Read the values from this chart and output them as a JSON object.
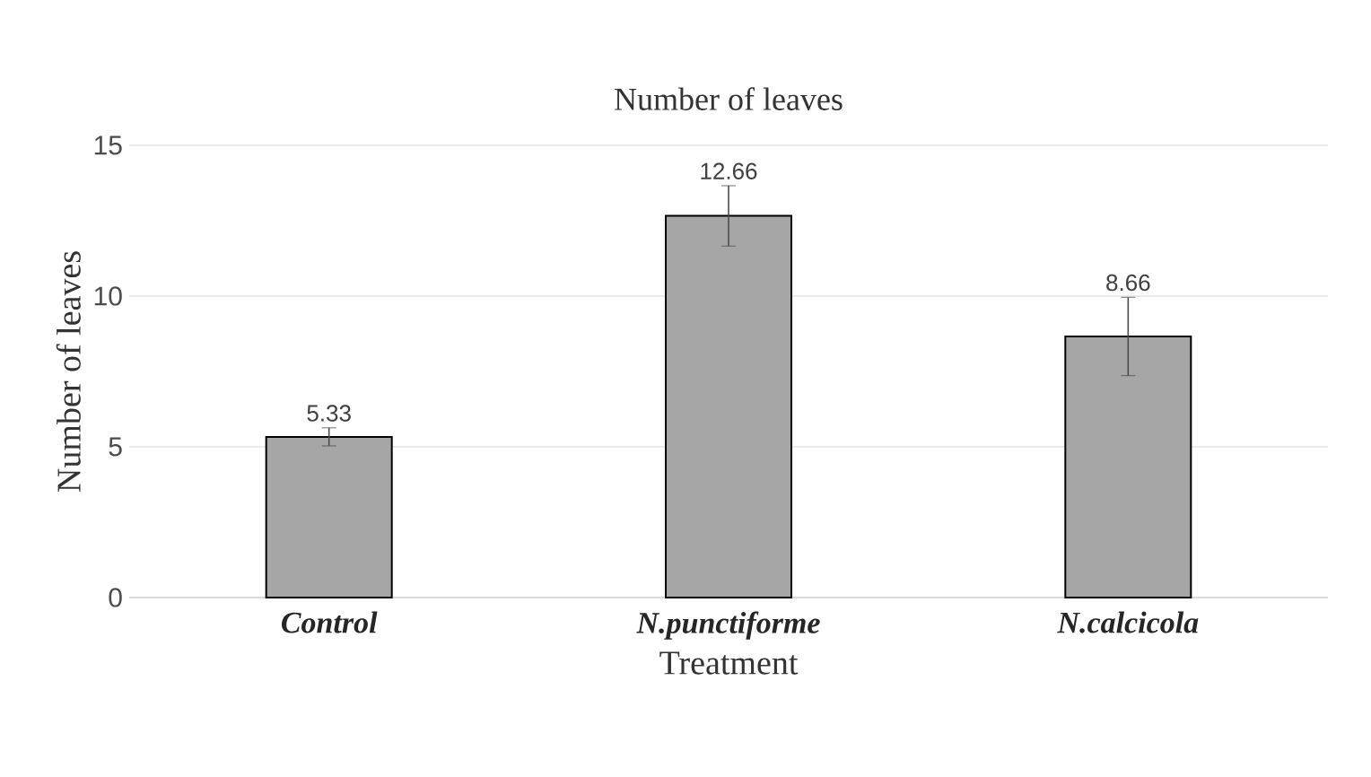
{
  "chart_data": {
    "type": "bar",
    "title": "Number of leaves",
    "xlabel": "Treatment",
    "ylabel": "Number of leaves",
    "categories": [
      "Control",
      "N.punctiforme",
      "N.calcicola"
    ],
    "values": [
      5.33,
      12.66,
      8.66
    ],
    "errors": [
      0.3,
      1.0,
      1.3
    ],
    "color": "#a6a6a6",
    "ylim": [
      0,
      15
    ],
    "yticks": [
      0,
      5,
      10,
      15
    ],
    "grid": "y",
    "data_labels": true
  }
}
